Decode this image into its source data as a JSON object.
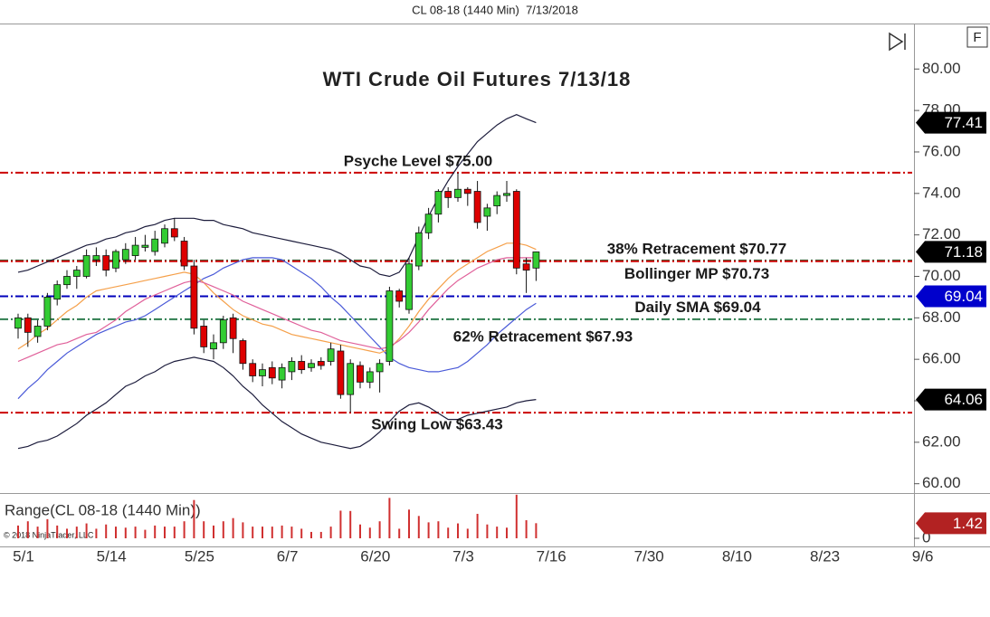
{
  "header": "CL 08-18 (1440 Min)  7/13/2018",
  "controls": {
    "f_button": "F"
  },
  "chart_data": {
    "type": "candlestick",
    "title": "WTI Crude Oil Futures 7/13/18",
    "x": [
      "5/1",
      "5/2",
      "5/3",
      "5/4",
      "5/7",
      "5/8",
      "5/9",
      "5/10",
      "5/11",
      "5/14",
      "5/15",
      "5/16",
      "5/17",
      "5/18",
      "5/21",
      "5/22",
      "5/23",
      "5/24",
      "5/25",
      "5/28",
      "5/29",
      "5/30",
      "5/31",
      "6/1",
      "6/4",
      "6/5",
      "6/6",
      "6/7",
      "6/8",
      "6/11",
      "6/12",
      "6/13",
      "6/14",
      "6/15",
      "6/18",
      "6/19",
      "6/20",
      "6/21",
      "6/22",
      "6/25",
      "6/26",
      "6/27",
      "6/28",
      "6/29",
      "7/2",
      "7/3",
      "7/4",
      "7/5",
      "7/6",
      "7/9",
      "7/10",
      "7/11",
      "7/12",
      "7/13"
    ],
    "open": [
      67.5,
      68.0,
      67.1,
      67.6,
      68.9,
      69.6,
      70.0,
      70.0,
      70.8,
      71.0,
      70.4,
      70.8,
      71.0,
      71.4,
      71.2,
      71.6,
      72.3,
      71.7,
      70.5,
      67.6,
      66.5,
      66.8,
      68.0,
      66.9,
      65.8,
      65.2,
      65.6,
      65.0,
      65.4,
      65.9,
      65.6,
      65.9,
      65.9,
      66.4,
      64.3,
      65.7,
      64.9,
      65.4,
      65.9,
      69.3,
      68.4,
      70.5,
      72.1,
      73.0,
      74.1,
      73.8,
      74.2,
      74.1,
      72.9,
      73.4,
      73.9,
      74.1,
      70.6,
      70.4
    ],
    "high": [
      68.2,
      68.2,
      67.9,
      69.2,
      69.8,
      70.3,
      70.5,
      71.3,
      71.4,
      71.3,
      71.3,
      71.6,
      71.9,
      72.0,
      72.2,
      72.5,
      72.8,
      71.9,
      70.8,
      67.9,
      67.2,
      68.1,
      68.2,
      67.0,
      66.0,
      65.8,
      65.9,
      65.8,
      66.1,
      66.2,
      66.0,
      66.1,
      66.8,
      66.7,
      66.0,
      65.9,
      65.6,
      66.0,
      69.5,
      69.4,
      70.9,
      72.4,
      73.3,
      74.2,
      74.3,
      75.0,
      74.3,
      74.6,
      73.5,
      74.1,
      74.6,
      74.2,
      70.9,
      71.2
    ],
    "low": [
      67.0,
      66.6,
      66.8,
      67.4,
      68.6,
      69.4,
      69.4,
      69.9,
      70.5,
      70.0,
      70.2,
      70.6,
      70.8,
      71.2,
      71.0,
      71.4,
      71.7,
      70.3,
      67.2,
      66.3,
      66.0,
      66.5,
      66.3,
      65.5,
      64.9,
      64.7,
      64.8,
      64.6,
      65.0,
      65.3,
      65.4,
      65.5,
      65.7,
      64.1,
      63.43,
      64.6,
      64.6,
      64.4,
      65.7,
      68.5,
      68.2,
      70.3,
      71.8,
      72.6,
      73.3,
      73.6,
      73.4,
      72.3,
      72.2,
      73.0,
      73.6,
      70.1,
      69.2,
      69.78
    ],
    "close": [
      68.0,
      67.3,
      67.6,
      69.0,
      69.6,
      70.0,
      70.3,
      71.0,
      71.0,
      70.3,
      71.2,
      71.3,
      71.5,
      71.5,
      71.8,
      72.3,
      71.9,
      70.5,
      67.5,
      66.6,
      66.8,
      67.9,
      67.0,
      65.8,
      65.2,
      65.5,
      65.1,
      65.6,
      65.9,
      65.5,
      65.8,
      65.7,
      66.5,
      64.3,
      65.8,
      64.9,
      65.4,
      65.8,
      69.3,
      68.8,
      70.6,
      72.1,
      73.0,
      74.1,
      73.8,
      74.2,
      74.0,
      72.6,
      73.3,
      73.9,
      74.0,
      70.4,
      70.3,
      71.18
    ],
    "up_color": "#33cc33",
    "down_color": "#dd0000",
    "lines": [
      {
        "color": "#1c1c3c",
        "values": [
          70.2,
          70.3,
          70.5,
          70.7,
          70.9,
          71.1,
          71.3,
          71.5,
          71.6,
          71.8,
          71.9,
          72.1,
          72.2,
          72.4,
          72.5,
          72.7,
          72.8,
          72.8,
          72.8,
          72.7,
          72.7,
          72.5,
          72.4,
          72.3,
          72.1,
          72.0,
          71.9,
          71.8,
          71.7,
          71.6,
          71.5,
          71.4,
          71.3,
          71.1,
          70.8,
          70.5,
          70.4,
          70.1,
          70.0,
          70.2,
          70.9,
          71.9,
          72.9,
          73.8,
          74.6,
          75.3,
          75.9,
          76.5,
          76.9,
          77.3,
          77.6,
          77.8,
          77.6,
          77.41
        ]
      },
      {
        "color": "#1c1c3c",
        "values": [
          61.7,
          61.8,
          62.0,
          62.1,
          62.3,
          62.6,
          62.9,
          63.3,
          63.6,
          63.9,
          64.3,
          64.7,
          64.9,
          65.2,
          65.4,
          65.7,
          65.9,
          66.0,
          66.1,
          66.0,
          65.9,
          65.6,
          65.2,
          64.7,
          64.3,
          63.8,
          63.4,
          63.0,
          62.7,
          62.4,
          62.2,
          62.0,
          61.9,
          61.8,
          61.7,
          61.8,
          62.1,
          62.5,
          63.0,
          63.5,
          63.8,
          63.9,
          63.7,
          63.4,
          63.1,
          63.1,
          63.3,
          63.4,
          63.5,
          63.6,
          63.7,
          63.9,
          64.0,
          64.06
        ]
      },
      {
        "color": "#4a5ad8",
        "values": [
          64.1,
          64.6,
          65.0,
          65.5,
          65.9,
          66.3,
          66.6,
          66.9,
          67.2,
          67.4,
          67.6,
          67.8,
          67.9,
          68.1,
          68.4,
          68.7,
          69.0,
          69.3,
          69.6,
          69.9,
          70.1,
          70.4,
          70.6,
          70.8,
          70.9,
          70.9,
          70.9,
          70.8,
          70.5,
          70.2,
          69.9,
          69.5,
          69.0,
          68.6,
          68.1,
          67.6,
          67.1,
          66.6,
          66.1,
          65.8,
          65.6,
          65.5,
          65.4,
          65.4,
          65.5,
          65.6,
          65.9,
          66.3,
          66.7,
          67.2,
          67.6,
          68.0,
          68.4,
          68.7
        ]
      },
      {
        "color": "#f5a04a",
        "values": [
          66.5,
          66.8,
          67.2,
          67.5,
          67.9,
          68.3,
          68.6,
          69.0,
          69.3,
          69.4,
          69.5,
          69.6,
          69.7,
          69.8,
          69.9,
          70.0,
          70.1,
          70.2,
          70.1,
          69.7,
          69.2,
          68.8,
          68.4,
          68.1,
          67.9,
          67.7,
          67.6,
          67.4,
          67.2,
          67.1,
          67.0,
          66.9,
          66.8,
          66.7,
          66.6,
          66.5,
          66.4,
          66.3,
          66.5,
          67.0,
          67.6,
          68.3,
          68.9,
          69.4,
          69.9,
          70.3,
          70.6,
          70.9,
          71.2,
          71.4,
          71.6,
          71.6,
          71.5,
          71.3
        ]
      },
      {
        "color": "#e0609a",
        "values": [
          65.9,
          66.1,
          66.3,
          66.5,
          66.7,
          66.8,
          67.0,
          67.2,
          67.3,
          67.6,
          67.9,
          68.3,
          68.6,
          68.9,
          69.1,
          69.3,
          69.5,
          69.7,
          69.8,
          69.7,
          69.5,
          69.3,
          69.1,
          68.8,
          68.6,
          68.4,
          68.2,
          68.0,
          67.8,
          67.6,
          67.4,
          67.3,
          67.1,
          66.9,
          66.8,
          66.7,
          66.6,
          66.5,
          66.6,
          66.9,
          67.3,
          67.8,
          68.4,
          68.9,
          69.4,
          69.8,
          70.1,
          70.4,
          70.6,
          70.8,
          70.9,
          70.9,
          70.9,
          70.9
        ]
      }
    ],
    "levels": [
      {
        "label": "Psyche Level $75.00",
        "value": 75.0,
        "color": "#cc0000"
      },
      {
        "label": "38% Retracement $70.77",
        "value": 70.77,
        "color": "#2e7d4f"
      },
      {
        "label": "Bollinger MP $70.73",
        "value": 70.73,
        "color": "#cc0000"
      },
      {
        "label": "Daily SMA $69.04",
        "value": 69.04,
        "color": "#0000bb"
      },
      {
        "label": "62% Retracement $67.93",
        "value": 67.93,
        "color": "#2e7d4f"
      },
      {
        "label": "Swing Low $63.43",
        "value": 63.43,
        "color": "#cc0000"
      }
    ],
    "price_markers": [
      {
        "value": 77.41,
        "color": "#000000"
      },
      {
        "value": 69.04,
        "color": "#0000cc"
      },
      {
        "value": 64.06,
        "color": "#000000"
      },
      {
        "value": 71.18,
        "color": "#000000"
      }
    ],
    "ylim": [
      59.55,
      82.15
    ],
    "yticks": [
      {
        "value": 60,
        "label": "60.00"
      },
      {
        "value": 62,
        "label": "62.00"
      },
      {
        "value": 64,
        "label": "64.00"
      },
      {
        "value": 66,
        "label": "66.00"
      },
      {
        "value": 68,
        "label": "68.00"
      },
      {
        "value": 70,
        "label": "70.00"
      },
      {
        "value": 72,
        "label": "72.00"
      },
      {
        "value": 74,
        "label": "74.00"
      },
      {
        "value": 76,
        "label": "76.00"
      },
      {
        "value": 78,
        "label": "78.00"
      },
      {
        "value": 80,
        "label": "80.00"
      }
    ],
    "xticks": [
      "5/1",
      "5/14",
      "5/25",
      "6/7",
      "6/20",
      "7/3",
      "7/16",
      "7/30",
      "8/10",
      "8/23",
      "9/6"
    ]
  },
  "range_panel": {
    "title": "Range(CL 08-18 (1440 Min))",
    "copyright": "© 2018 NinjaTrader, LLC",
    "color": "#d03030",
    "values": [
      1.2,
      1.6,
      1.1,
      1.8,
      1.2,
      0.9,
      1.1,
      1.4,
      0.9,
      1.3,
      1.1,
      1.0,
      1.1,
      0.8,
      1.2,
      1.1,
      1.1,
      1.6,
      3.6,
      1.6,
      1.2,
      1.6,
      1.9,
      1.5,
      1.1,
      1.1,
      1.1,
      1.2,
      1.1,
      0.9,
      0.6,
      0.6,
      1.1,
      2.6,
      2.57,
      1.3,
      1.0,
      1.6,
      3.8,
      0.9,
      2.7,
      2.1,
      1.5,
      1.6,
      1.0,
      1.4,
      0.9,
      2.3,
      1.3,
      1.1,
      1.0,
      4.1,
      1.7,
      1.42
    ],
    "marker": {
      "value": 1.42,
      "color": "#b22222"
    },
    "ylim": [
      0,
      4
    ],
    "yticks": [
      0
    ]
  }
}
